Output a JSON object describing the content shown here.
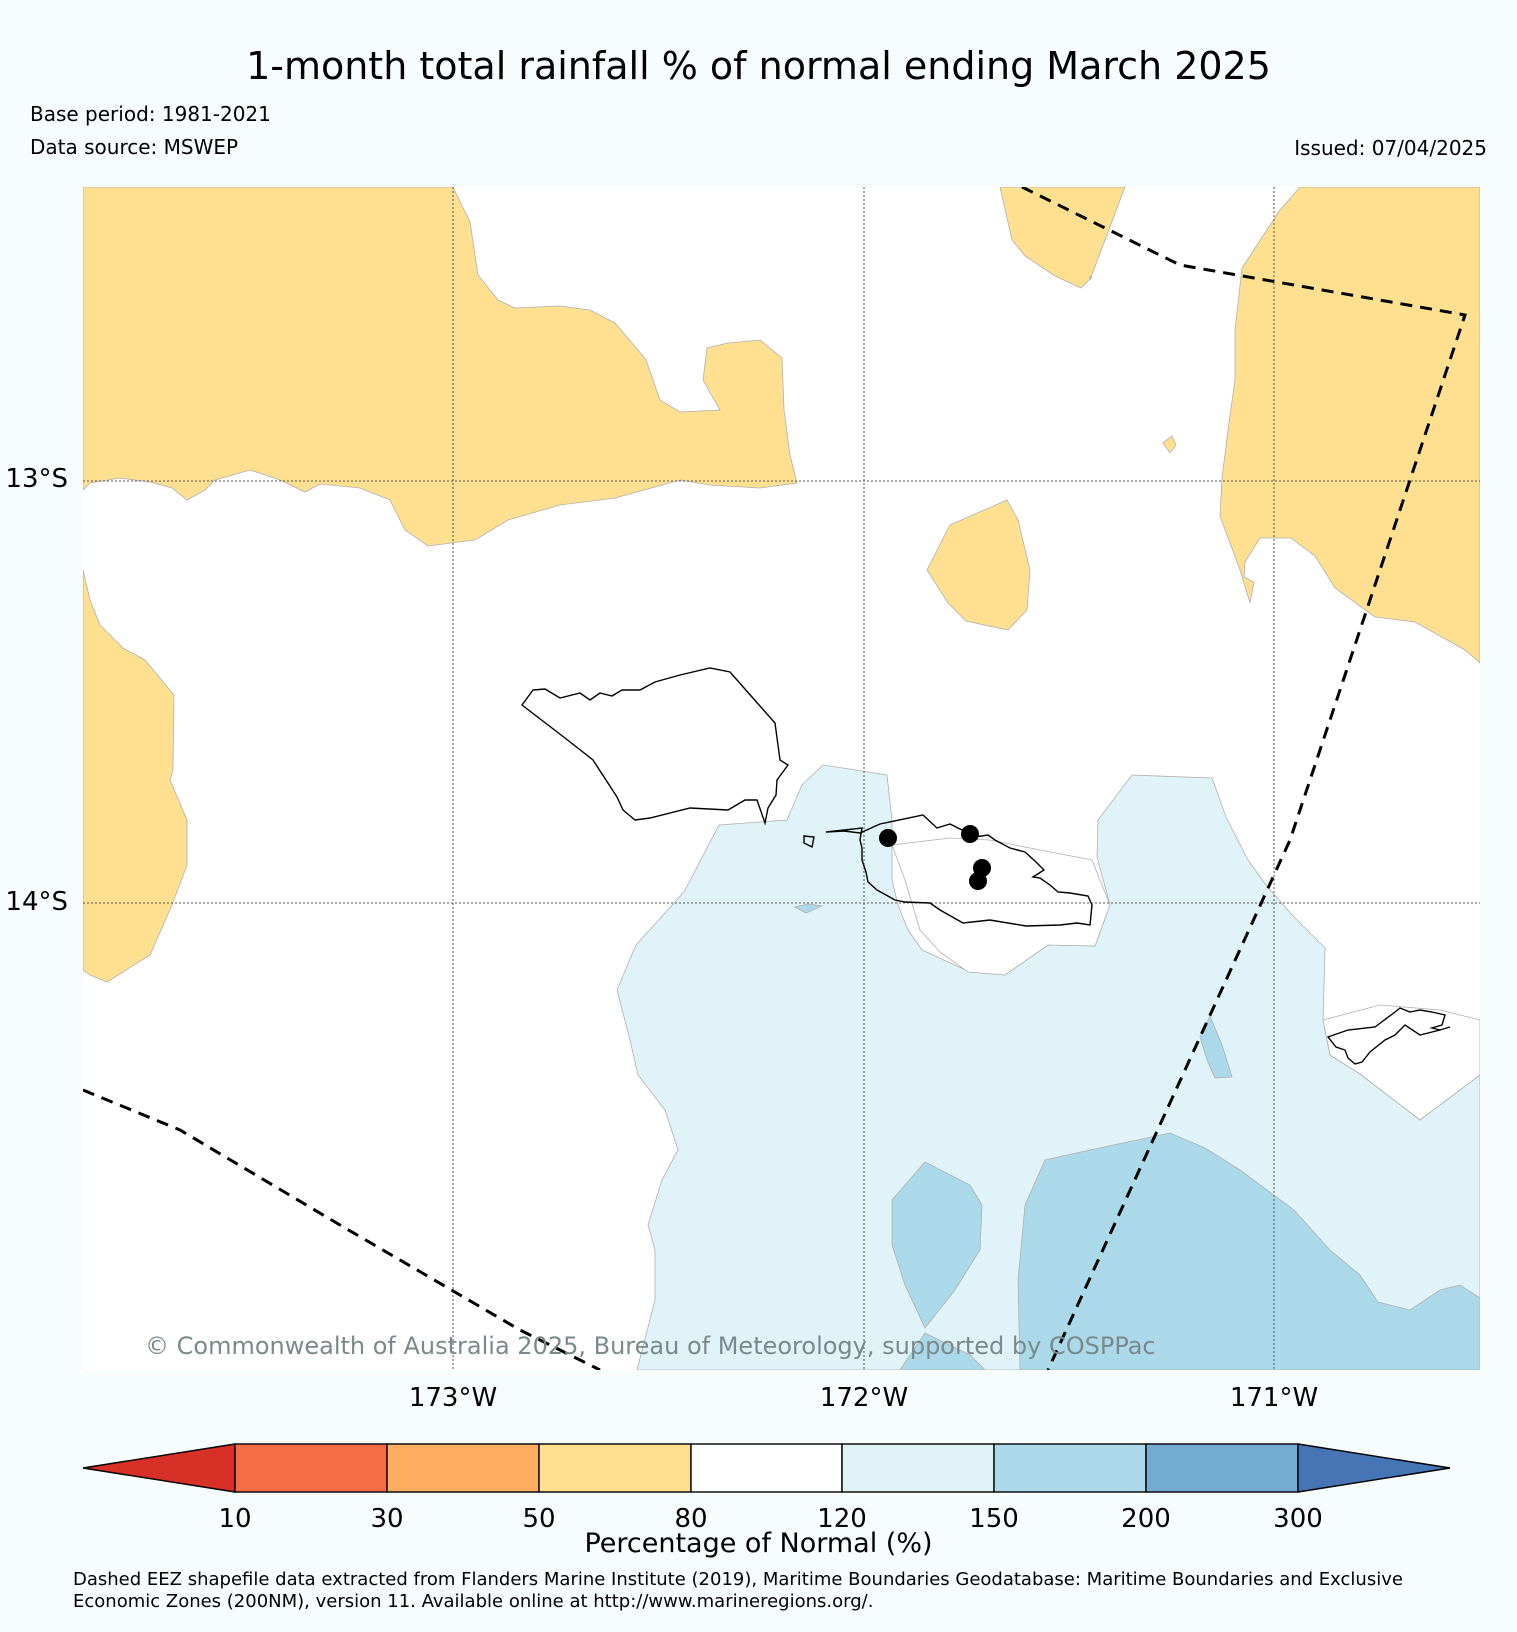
{
  "header": {
    "title": "1-month total rainfall % of normal ending March 2025",
    "base_period": "Base period: 1981-2021",
    "data_source": "Data source: MSWEP",
    "issued": "Issued: 07/04/2025"
  },
  "map": {
    "lat_labels": [
      "13°S",
      "14°S"
    ],
    "lon_labels": [
      "173°W",
      "172°W",
      "171°W"
    ],
    "copyright": "© Commonwealth of Australia 2025, Bureau of Meteorology, supported by COSPPac"
  },
  "legend": {
    "title": "Percentage of Normal (%)",
    "ticks": [
      "10",
      "30",
      "50",
      "80",
      "120",
      "150",
      "200",
      "300"
    ],
    "colors": {
      "lt10": "#d73027",
      "10-30": "#f46d43",
      "30-50": "#fdae61",
      "50-80": "#fee090",
      "80-120": "#ffffff",
      "120-150": "#e0f3f8",
      "150-200": "#abd9e9",
      "200-300": "#74add1",
      "gt300": "#4575b4"
    }
  },
  "footnote": "Dashed EEZ shapefile data extracted from Flanders Marine Institute (2019), Maritime Boundaries Geodatabase: Maritime Boundaries and Exclusive Economic Zones (200NM), version 11. Available online at http://www.marineregions.org/."
}
